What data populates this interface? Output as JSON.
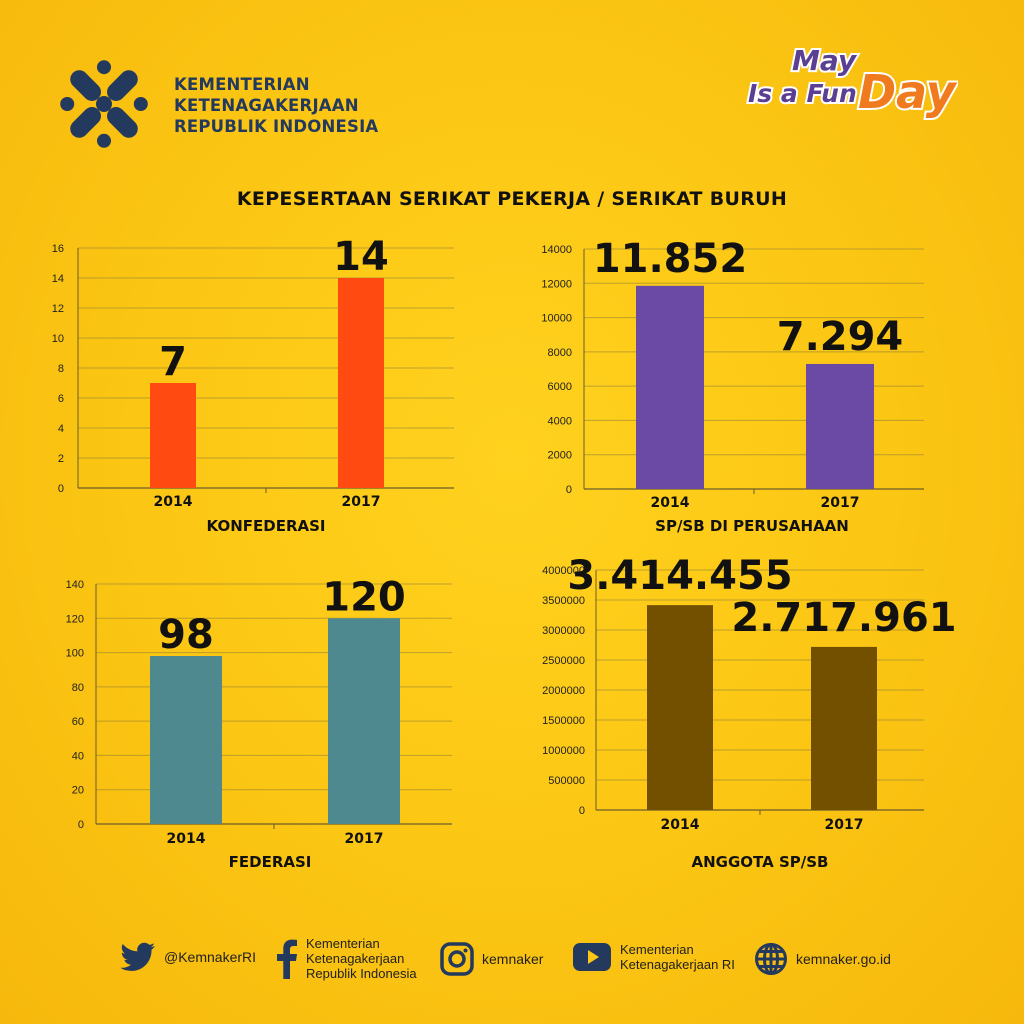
{
  "header": {
    "org_lines": [
      "KEMENTERIAN",
      "KETENAGAKERJAAN",
      "REPUBLIK INDONESIA"
    ],
    "event_badge": {
      "line1": "May",
      "line2": "Is a Fun",
      "line3": "Day"
    }
  },
  "title": "KEPESERTAAN SERIKAT PEKERJA / SERIKAT BURUH",
  "colors": {
    "background": "#fcc815",
    "konfederasi": "#ff4b12",
    "sp_sb": "#6a4aa5",
    "federasi": "#4e8990",
    "anggota": "#725000",
    "logo": "#23395e"
  },
  "chart_data": [
    {
      "type": "bar",
      "title": "KONFEDERASI",
      "categories": [
        "2014",
        "2017"
      ],
      "values": [
        7,
        14
      ],
      "data_labels": [
        "7",
        "14"
      ],
      "y_ticks": [
        "0",
        "2",
        "4",
        "6",
        "8",
        "10",
        "12",
        "14",
        "16"
      ],
      "ylim": [
        0,
        16
      ],
      "grid": true
    },
    {
      "type": "bar",
      "title": "SP/SB DI PERUSAHAAN",
      "categories": [
        "2014",
        "2017"
      ],
      "values": [
        11852,
        7294
      ],
      "data_labels": [
        "11.852",
        "7.294"
      ],
      "y_ticks": [
        "0",
        "2000",
        "4000",
        "6000",
        "8000",
        "10000",
        "12000",
        "14000"
      ],
      "ylim": [
        0,
        14000
      ],
      "grid": true
    },
    {
      "type": "bar",
      "title": "FEDERASI",
      "categories": [
        "2014",
        "2017"
      ],
      "values": [
        98,
        120
      ],
      "data_labels": [
        "98",
        "120"
      ],
      "y_ticks": [
        "0",
        "20",
        "40",
        "60",
        "80",
        "100",
        "120",
        "140"
      ],
      "ylim": [
        0,
        140
      ],
      "grid": true
    },
    {
      "type": "bar",
      "title": "ANGGOTA SP/SB",
      "categories": [
        "2014",
        "2017"
      ],
      "values": [
        3414455,
        2717961
      ],
      "data_labels": [
        "3.414.455",
        "2.717.961"
      ],
      "y_ticks": [
        "0",
        "500000",
        "1000000",
        "1500000",
        "2000000",
        "2500000",
        "3000000",
        "3500000",
        "4000000"
      ],
      "ylim": [
        0,
        4000000
      ],
      "grid": true
    }
  ],
  "footer": {
    "twitter": "@KemnakerRI",
    "facebook": [
      "Kementerian",
      "Ketenagakerjaan",
      "Republik Indonesia"
    ],
    "instagram": "kemnaker",
    "youtube": [
      "Kementerian",
      "Ketenagakerjaan RI"
    ],
    "website": "kemnaker.go.id"
  }
}
